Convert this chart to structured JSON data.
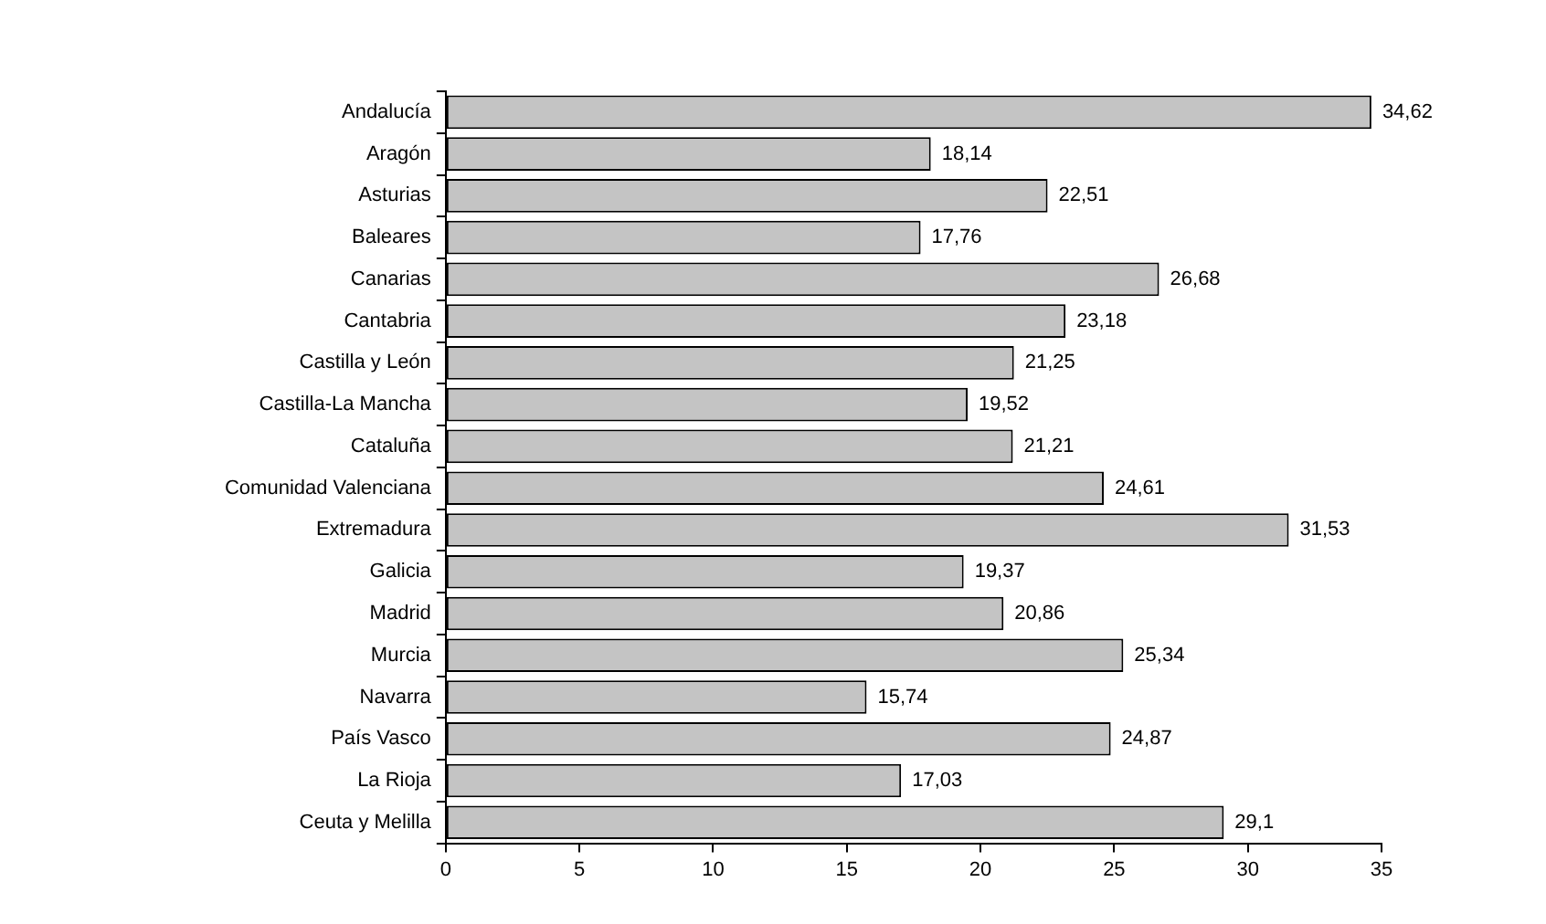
{
  "chart_data": {
    "type": "bar",
    "orientation": "horizontal",
    "categories": [
      "Andalucía",
      "Aragón",
      "Asturias",
      "Baleares",
      "Canarias",
      "Cantabria",
      "Castilla y León",
      "Castilla-La Mancha",
      "Cataluña",
      "Comunidad Valenciana",
      "Extremadura",
      "Galicia",
      "Madrid",
      "Murcia",
      "Navarra",
      "País Vasco",
      "La Rioja",
      "Ceuta y Melilla"
    ],
    "values": [
      34.62,
      18.14,
      22.51,
      17.76,
      26.68,
      23.18,
      21.25,
      19.52,
      21.21,
      24.61,
      31.53,
      19.37,
      20.86,
      25.34,
      15.74,
      24.87,
      17.03,
      29.1
    ],
    "value_labels": [
      "34,62",
      "18,14",
      "22,51",
      "17,76",
      "26,68",
      "23,18",
      "21,25",
      "19,52",
      "21,21",
      "24,61",
      "31,53",
      "19,37",
      "20,86",
      "25,34",
      "15,74",
      "24,87",
      "17,03",
      "29,1"
    ],
    "color": "#c4c4c4",
    "xlim": [
      0,
      35
    ],
    "xticks": [
      0,
      5,
      10,
      15,
      20,
      25,
      30,
      35
    ],
    "grid": false,
    "legend": false
  }
}
